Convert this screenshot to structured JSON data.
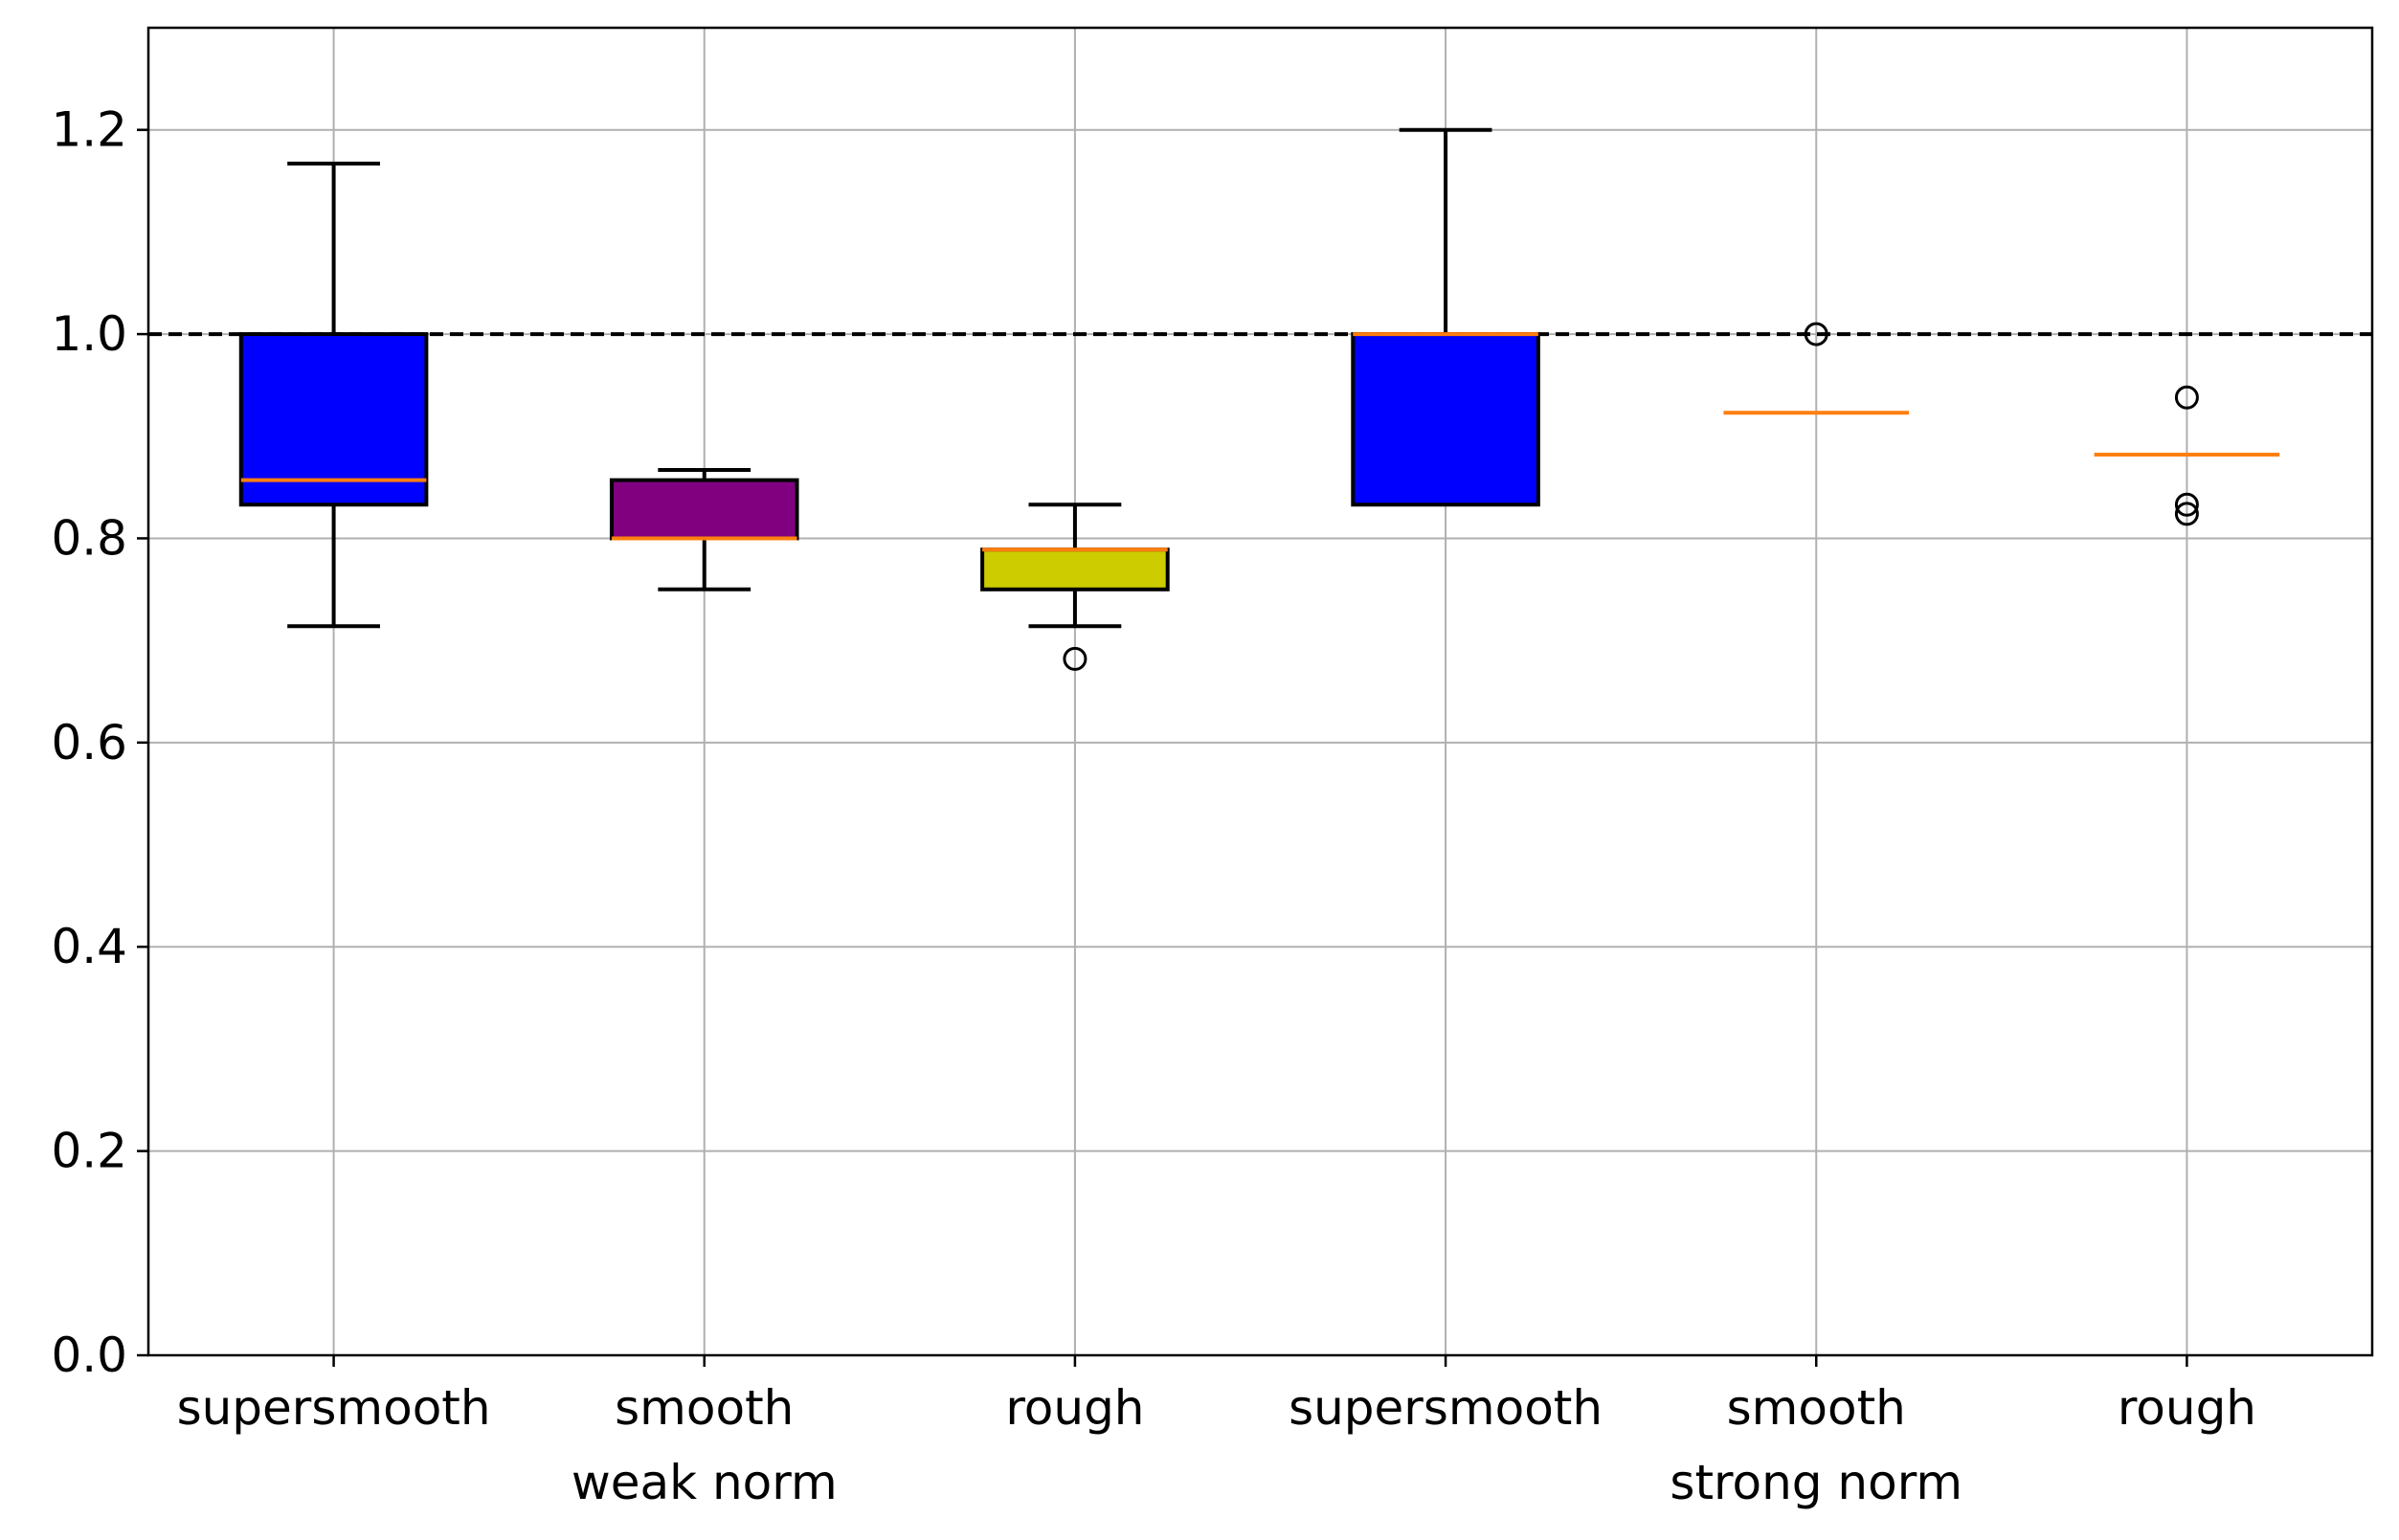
{
  "chart_data": {
    "type": "box",
    "title": "",
    "xlabel": "",
    "ylabel": "",
    "ylim": [
      0,
      1.3
    ],
    "yticks": [
      0.0,
      0.2,
      0.4,
      0.6,
      0.8,
      1.0,
      1.2
    ],
    "ytick_labels": [
      "0.0",
      "0.2",
      "0.4",
      "0.6",
      "0.8",
      "1.0",
      "1.2"
    ],
    "grid": true,
    "reference_line": {
      "y": 1.0,
      "style": "dashed",
      "color": "#000000"
    },
    "categories": [
      "supersmooth",
      "smooth",
      "rough",
      "supersmooth",
      "smooth",
      "rough"
    ],
    "group_labels": [
      {
        "label": "weak norm",
        "category_index": 1
      },
      {
        "label": "strong norm",
        "category_index": 4
      }
    ],
    "boxes": [
      {
        "category": "supersmooth",
        "group": "weak norm",
        "whisker_low": 0.714,
        "q1": 0.833,
        "median": 0.857,
        "q3": 1.0,
        "whisker_high": 1.167,
        "fliers": [],
        "fill": "#0000ff"
      },
      {
        "category": "smooth",
        "group": "weak norm",
        "whisker_low": 0.75,
        "q1": 0.8,
        "median": 0.8,
        "q3": 0.857,
        "whisker_high": 0.867,
        "fliers": [],
        "fill": "#800080"
      },
      {
        "category": "rough",
        "group": "weak norm",
        "whisker_low": 0.714,
        "q1": 0.75,
        "median": 0.789,
        "q3": 0.789,
        "whisker_high": 0.833,
        "fliers": [
          0.682
        ],
        "fill": "#cccc00"
      },
      {
        "category": "supersmooth",
        "group": "strong norm",
        "whisker_low": 0.833,
        "q1": 0.833,
        "median": 1.0,
        "q3": 1.0,
        "whisker_high": 1.2,
        "fliers": [],
        "fill": "#0000ff"
      },
      {
        "category": "smooth",
        "group": "strong norm",
        "whisker_low": 0.923,
        "q1": 0.923,
        "median": 0.923,
        "q3": 0.923,
        "whisker_high": 0.923,
        "fliers": [
          1.0
        ],
        "fill": "#ffffff"
      },
      {
        "category": "rough",
        "group": "strong norm",
        "whisker_low": 0.882,
        "q1": 0.882,
        "median": 0.882,
        "q3": 0.882,
        "whisker_high": 0.882,
        "fliers": [
          0.938,
          0.833,
          0.824
        ],
        "fill": "#ffffff"
      }
    ],
    "colors": {
      "median": "#ff7f0e",
      "grid": "#b0b0b0",
      "axis": "#000000"
    }
  }
}
